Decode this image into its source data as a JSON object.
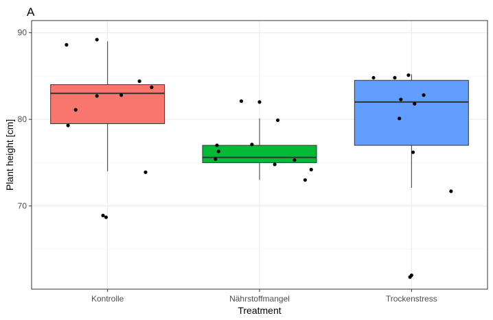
{
  "chart_data": {
    "type": "box",
    "tag": "A",
    "xlabel": "Treatment",
    "ylabel": "Plant height [cm]",
    "ylim": [
      60.4,
      91.4
    ],
    "yticks": [
      70,
      80,
      90
    ],
    "grid": true,
    "categories": [
      "Kontrolle",
      "Nährstoffmangel",
      "Trockenstress"
    ],
    "boxes": [
      {
        "category": "Kontrolle",
        "color": "#F8766D",
        "whisker_low": 74.0,
        "q1": 79.5,
        "median": 83.0,
        "q3": 84.0,
        "whisker_high": 89.0
      },
      {
        "category": "Nährstoffmangel",
        "color": "#00BA38",
        "whisker_low": 73.0,
        "q1": 75.0,
        "median": 75.6,
        "q3": 77.0,
        "whisker_high": 80.1
      },
      {
        "category": "Trockenstress",
        "color": "#619CFF",
        "whisker_low": 72.1,
        "q1": 77.0,
        "median": 82.0,
        "q3": 84.5,
        "whisker_high": 85.2
      }
    ],
    "points": [
      {
        "category": "Kontrolle",
        "dx": -0.27,
        "y": 88.6
      },
      {
        "category": "Kontrolle",
        "dx": -0.07,
        "y": 89.2
      },
      {
        "category": "Kontrolle",
        "dx": 0.21,
        "y": 84.4
      },
      {
        "category": "Kontrolle",
        "dx": 0.29,
        "y": 83.7
      },
      {
        "category": "Kontrolle",
        "dx": 0.09,
        "y": 82.8
      },
      {
        "category": "Kontrolle",
        "dx": -0.07,
        "y": 82.7
      },
      {
        "category": "Kontrolle",
        "dx": -0.21,
        "y": 81.1
      },
      {
        "category": "Kontrolle",
        "dx": -0.26,
        "y": 79.3
      },
      {
        "category": "Kontrolle",
        "dx": 0.25,
        "y": 73.9
      },
      {
        "category": "Kontrolle",
        "dx": -0.03,
        "y": 68.9
      },
      {
        "category": "Kontrolle",
        "dx": -0.01,
        "y": 68.7
      },
      {
        "category": "Nährstoffmangel",
        "dx": -0.12,
        "y": 82.1
      },
      {
        "category": "Nährstoffmangel",
        "dx": 0.0,
        "y": 82.0
      },
      {
        "category": "Nährstoffmangel",
        "dx": 0.12,
        "y": 79.9
      },
      {
        "category": "Nährstoffmangel",
        "dx": -0.28,
        "y": 77.0
      },
      {
        "category": "Nährstoffmangel",
        "dx": -0.05,
        "y": 77.1
      },
      {
        "category": "Nährstoffmangel",
        "dx": -0.27,
        "y": 76.3
      },
      {
        "category": "Nährstoffmangel",
        "dx": -0.29,
        "y": 75.4
      },
      {
        "category": "Nährstoffmangel",
        "dx": 0.23,
        "y": 75.3
      },
      {
        "category": "Nährstoffmangel",
        "dx": 0.1,
        "y": 74.8
      },
      {
        "category": "Nährstoffmangel",
        "dx": 0.34,
        "y": 74.2
      },
      {
        "category": "Nährstoffmangel",
        "dx": 0.3,
        "y": 73.0
      },
      {
        "category": "Trockenstress",
        "dx": -0.25,
        "y": 84.8
      },
      {
        "category": "Trockenstress",
        "dx": -0.11,
        "y": 84.8
      },
      {
        "category": "Trockenstress",
        "dx": -0.02,
        "y": 85.1
      },
      {
        "category": "Trockenstress",
        "dx": 0.08,
        "y": 82.8
      },
      {
        "category": "Trockenstress",
        "dx": -0.07,
        "y": 82.3
      },
      {
        "category": "Trockenstress",
        "dx": 0.02,
        "y": 81.8
      },
      {
        "category": "Trockenstress",
        "dx": -0.08,
        "y": 80.1
      },
      {
        "category": "Trockenstress",
        "dx": 0.01,
        "y": 76.2
      },
      {
        "category": "Trockenstress",
        "dx": 0.26,
        "y": 71.7
      },
      {
        "category": "Trockenstress",
        "dx": -0.01,
        "y": 61.8
      },
      {
        "category": "Trockenstress",
        "dx": 0.0,
        "y": 62.0
      }
    ]
  }
}
